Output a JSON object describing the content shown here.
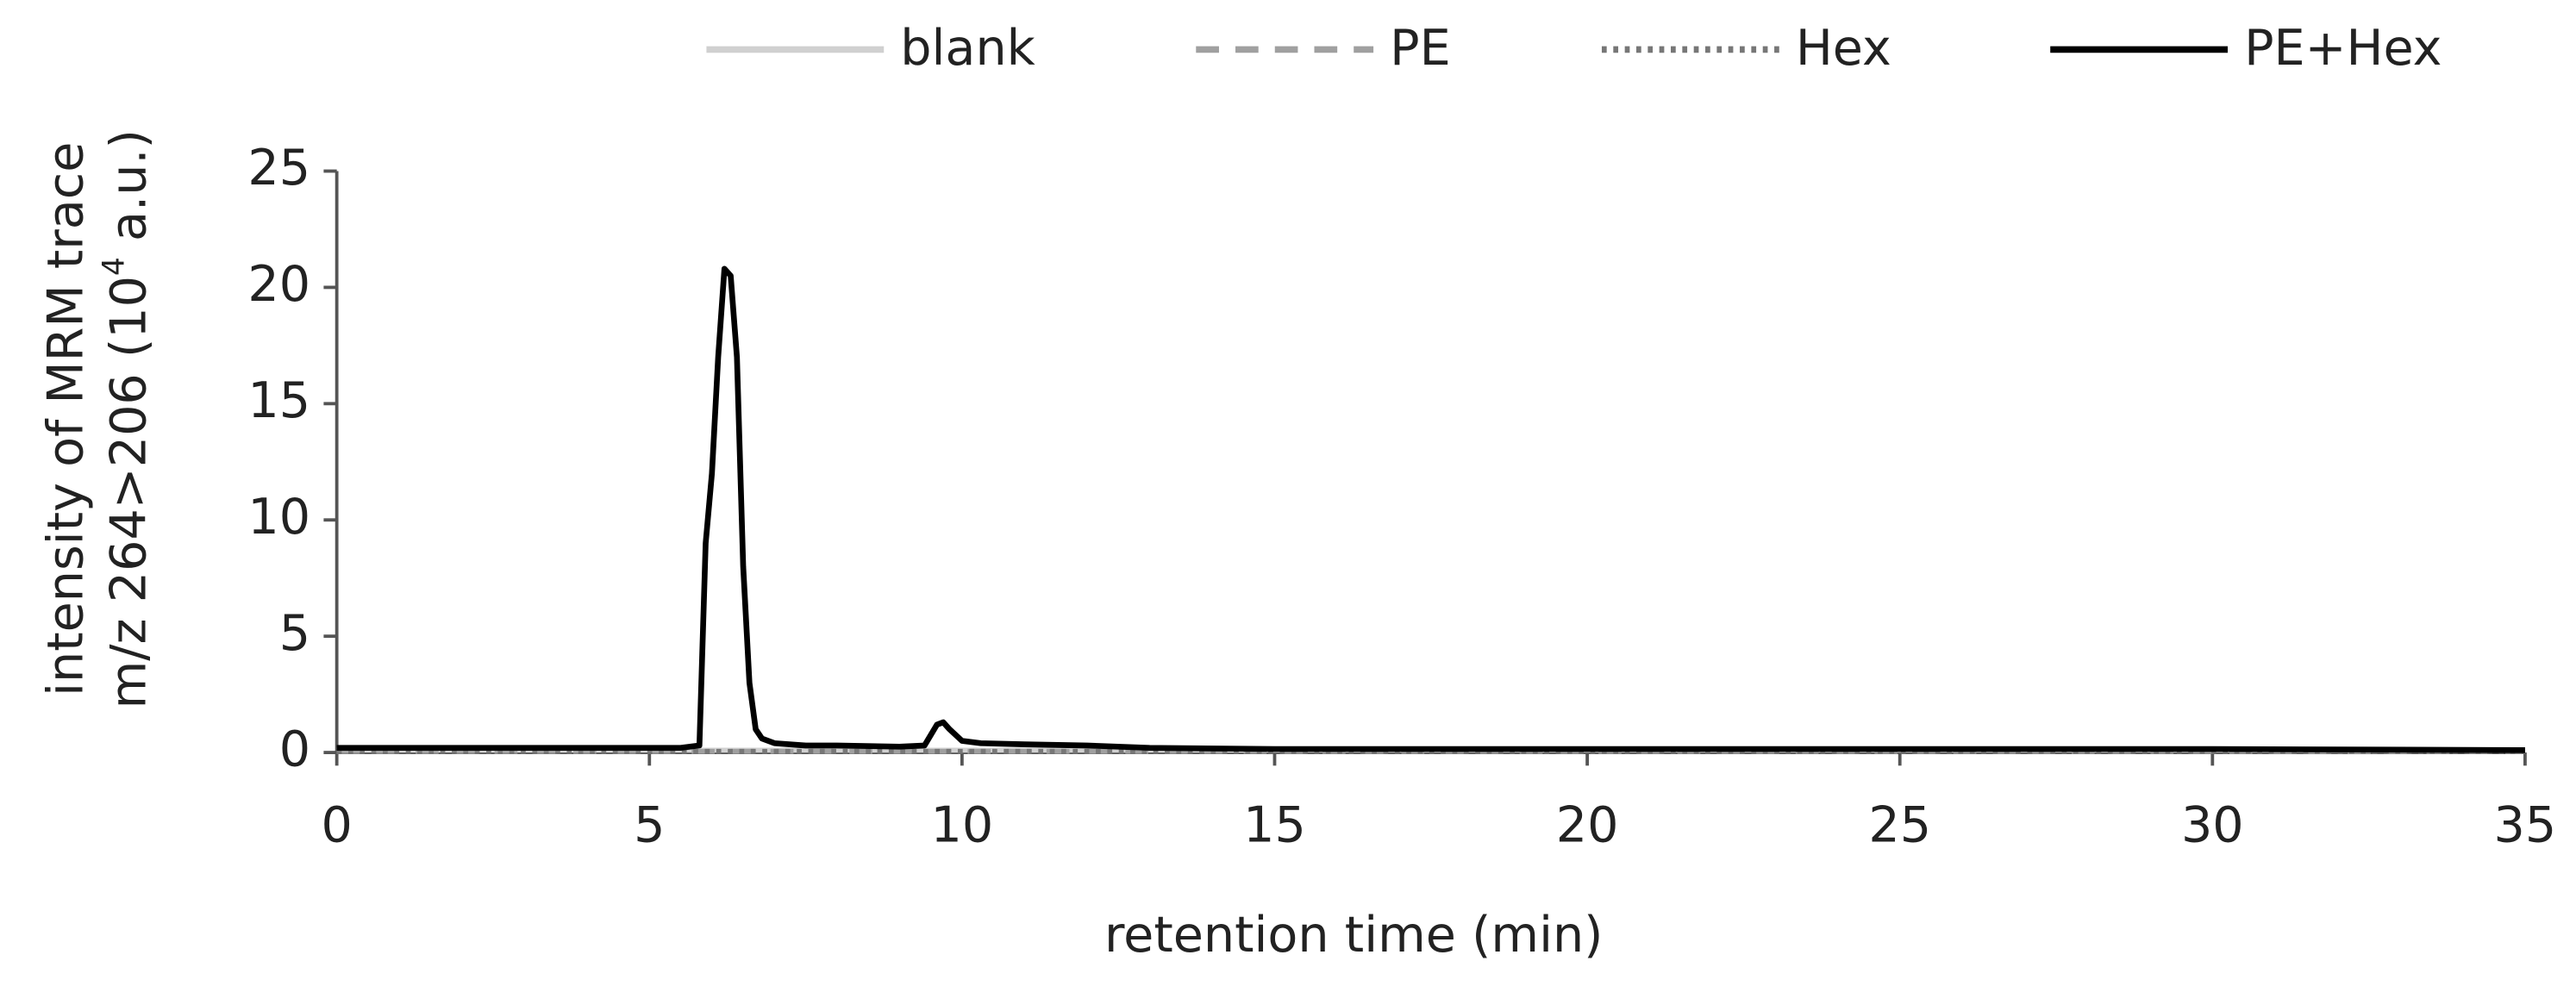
{
  "chart_data": {
    "type": "line",
    "xlabel": "retention time (min)",
    "ylabel_line1": "intensity of MRM trace",
    "ylabel_line2": "m/z 264>206  (10",
    "ylabel_sup": "4",
    "ylabel_tail": " a.u.)",
    "x": [
      0,
      1,
      2,
      3,
      4,
      5,
      5.5,
      5.8,
      5.9,
      6.0,
      6.1,
      6.2,
      6.3,
      6.4,
      6.5,
      6.6,
      6.7,
      6.8,
      7.0,
      7.5,
      8,
      9,
      9.4,
      9.6,
      9.7,
      9.8,
      10,
      10.3,
      11,
      12,
      13,
      15,
      20,
      25,
      30,
      35
    ],
    "series": [
      {
        "name": "blank",
        "color": "#d0d0d0",
        "dash": "solid",
        "values": [
          0.1,
          0.1,
          0.1,
          0.1,
          0.1,
          0.1,
          0.1,
          0.1,
          0.1,
          0.1,
          0.1,
          0.1,
          0.1,
          0.1,
          0.1,
          0.1,
          0.1,
          0.1,
          0.1,
          0.1,
          0.1,
          0.1,
          0.1,
          0.1,
          0.1,
          0.1,
          0.1,
          0.1,
          0.1,
          0.1,
          0.1,
          0.1,
          0.1,
          0.1,
          0.1,
          0.1
        ]
      },
      {
        "name": "PE",
        "color": "#a0a0a0",
        "dash": "dashed",
        "values": [
          0.05,
          0.05,
          0.05,
          0.05,
          0.05,
          0.05,
          0.05,
          0.05,
          0.05,
          0.05,
          0.05,
          0.05,
          0.05,
          0.05,
          0.05,
          0.05,
          0.05,
          0.05,
          0.05,
          0.05,
          0.05,
          0.05,
          0.05,
          0.05,
          0.05,
          0.05,
          0.05,
          0.05,
          0.05,
          0.05,
          0.05,
          0.05,
          0.05,
          0.05,
          0.05,
          0.05
        ]
      },
      {
        "name": "Hex",
        "color": "#777777",
        "dash": "dotted",
        "values": [
          0.05,
          0.05,
          0.05,
          0.05,
          0.05,
          0.05,
          0.05,
          0.05,
          0.05,
          0.05,
          0.05,
          0.05,
          0.05,
          0.05,
          0.05,
          0.05,
          0.05,
          0.05,
          0.05,
          0.05,
          0.05,
          0.05,
          0.05,
          0.05,
          0.05,
          0.05,
          0.05,
          0.05,
          0.05,
          0.05,
          0.05,
          0.05,
          0.05,
          0.05,
          0.05,
          0.05
        ]
      },
      {
        "name": "PE+Hex",
        "color": "#000000",
        "dash": "solid",
        "values": [
          0.2,
          0.2,
          0.2,
          0.2,
          0.2,
          0.2,
          0.2,
          0.3,
          9,
          12,
          17,
          20.8,
          20.5,
          17,
          8,
          3,
          1,
          0.6,
          0.4,
          0.3,
          0.3,
          0.25,
          0.3,
          1.2,
          1.3,
          1.0,
          0.5,
          0.4,
          0.35,
          0.3,
          0.2,
          0.15,
          0.15,
          0.15,
          0.15,
          0.1
        ]
      }
    ],
    "xlim": [
      0,
      35
    ],
    "xticks": [
      0,
      5,
      10,
      15,
      20,
      25,
      30,
      35
    ],
    "ylim": [
      0,
      25
    ],
    "yticks": [
      0,
      5,
      10,
      15,
      20,
      25
    ],
    "legend": "top"
  }
}
